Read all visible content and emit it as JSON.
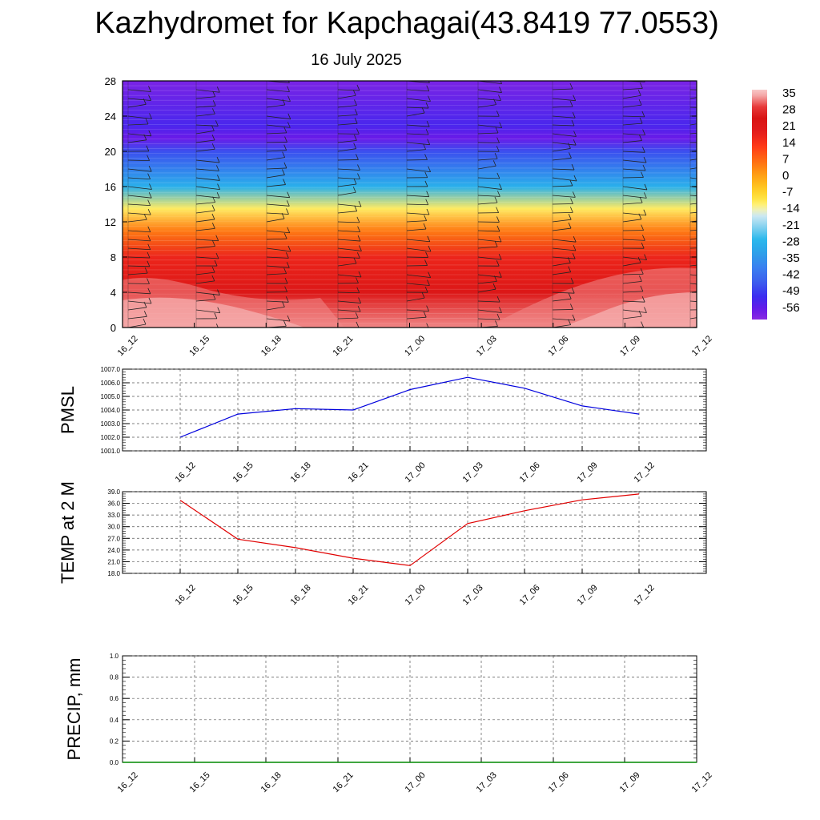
{
  "title": "Kazhydromet for Kapchagai(43.8419 77.0553)",
  "subtitle": "16 July 2025",
  "colors": {
    "pmsl_line": "#0000dd",
    "temp_line": "#e00000",
    "precip_line": "#008800",
    "grid": "#555555"
  },
  "chart_data": [
    {
      "type": "heatmap",
      "title": "",
      "xlabel": "",
      "ylabel": "",
      "x_ticks": [
        "16_12",
        "16_15",
        "16_18",
        "16_21",
        "17_00",
        "17_03",
        "17_06",
        "17_09",
        "17_12"
      ],
      "y_ticks": [
        0,
        4,
        8,
        12,
        16,
        20,
        24,
        28
      ],
      "ylim": [
        0,
        28
      ],
      "colorbar_labels": [
        "35",
        "28",
        "21",
        "14",
        "7",
        "0",
        "-7",
        "-14",
        "-21",
        "-28",
        "-35",
        "-42",
        "-49",
        "-56"
      ],
      "colorbar_range": [
        -60,
        38
      ],
      "temperature_profile": [
        {
          "level": 0,
          "value": 34
        },
        {
          "level": 4,
          "value": 24
        },
        {
          "level": 8,
          "value": 18
        },
        {
          "level": 11,
          "value": 6
        },
        {
          "level": 13.5,
          "value": -10
        },
        {
          "level": 16,
          "value": -28
        },
        {
          "level": 20,
          "value": -46
        },
        {
          "level": 21.5,
          "value": -56
        },
        {
          "level": 23,
          "value": -52
        },
        {
          "level": 28,
          "value": -58
        }
      ],
      "wind_barbs": "present"
    },
    {
      "type": "line",
      "title": "",
      "ylabel": "PMSL",
      "x": [
        "16_12",
        "16_15",
        "16_18",
        "16_21",
        "17_00",
        "17_03",
        "17_06",
        "17_09",
        "17_12"
      ],
      "y_ticks": [
        "1001.0",
        "1002.0",
        "1003.0",
        "1004.0",
        "1005.0",
        "1006.0",
        "1007.0"
      ],
      "ylim": [
        1001,
        1007
      ],
      "series": [
        {
          "values": [
            1002.0,
            1003.7,
            1004.1,
            1004.0,
            1005.5,
            1006.4,
            1005.6,
            1004.3,
            1003.7
          ]
        }
      ],
      "grid": true
    },
    {
      "type": "line",
      "title": "",
      "ylabel": "TEMP at 2 M",
      "x": [
        "16_12",
        "16_15",
        "16_18",
        "16_21",
        "17_00",
        "17_03",
        "17_06",
        "17_09",
        "17_12"
      ],
      "y_ticks": [
        "18.0",
        "21.0",
        "24.0",
        "27.0",
        "30.0",
        "33.0",
        "36.0",
        "39.0"
      ],
      "ylim": [
        18,
        39
      ],
      "series": [
        {
          "values": [
            36.8,
            26.8,
            24.6,
            21.9,
            20.0,
            30.8,
            34.1,
            36.9,
            38.4
          ]
        }
      ],
      "grid": true
    },
    {
      "type": "line",
      "title": "",
      "ylabel": "PRECIP, mm",
      "x": [
        "16_12",
        "16_15",
        "16_18",
        "16_21",
        "17_00",
        "17_03",
        "17_06",
        "17_09",
        "17_12"
      ],
      "y_ticks": [
        "0.0",
        "0.2",
        "0.4",
        "0.6",
        "0.8",
        "1.0"
      ],
      "ylim": [
        0,
        1
      ],
      "series": [
        {
          "values": [
            0,
            0,
            0,
            0,
            0,
            0,
            0,
            0,
            0
          ]
        }
      ],
      "grid": true
    }
  ]
}
